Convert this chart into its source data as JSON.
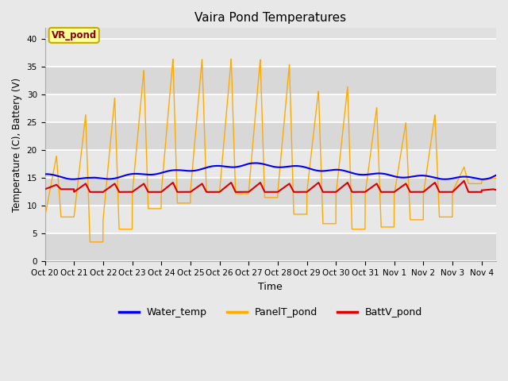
{
  "title": "Vaira Pond Temperatures",
  "xlabel": "Time",
  "ylabel": "Temperature (C), Battery (V)",
  "ylim": [
    0,
    42
  ],
  "yticks": [
    0,
    5,
    10,
    15,
    20,
    25,
    30,
    35,
    40
  ],
  "xtick_labels": [
    "Oct 20",
    "Oct 21",
    "Oct 22",
    "Oct 23",
    "Oct 24",
    "Oct 25",
    "Oct 26",
    "Oct 27",
    "Oct 28",
    "Oct 29",
    "Oct 30",
    "Oct 31",
    "Nov 1",
    "Nov 2",
    "Nov 3",
    "Nov 4"
  ],
  "water_color": "#0000ee",
  "panel_color": "#ffaa00",
  "batt_color": "#dd0000",
  "fig_color": "#e8e8e8",
  "plot_bg_color": "#e0e0e0",
  "annotation_text": "VR_pond",
  "legend_labels": [
    "Water_temp",
    "PanelT_pond",
    "BattV_pond"
  ],
  "panel_day_peak": [
    19.0,
    26.5,
    29.5,
    34.5,
    36.5,
    36.5,
    36.5,
    36.5,
    35.5,
    30.8,
    31.5,
    27.8,
    25.0,
    26.5,
    17.0,
    15.0
  ],
  "panel_night_min": [
    8.0,
    3.5,
    5.8,
    9.5,
    10.5,
    12.5,
    12.2,
    11.5,
    8.5,
    6.8,
    5.8,
    6.2,
    7.5,
    8.0,
    14.0,
    15.0
  ],
  "panel_start": [
    8.0,
    8.0,
    7.5,
    12.0,
    12.5,
    12.5,
    12.5,
    12.5,
    12.5,
    12.5,
    12.0,
    12.0,
    12.0,
    12.0,
    12.5,
    14.5
  ],
  "water_vals": [
    15.5,
    15.3,
    15.0,
    14.8,
    15.0,
    15.2,
    15.5,
    15.8,
    16.0,
    16.2,
    16.5,
    16.8,
    17.0,
    17.2,
    17.5,
    17.4,
    17.2,
    17.0,
    16.8,
    16.5,
    16.3,
    16.0,
    15.8,
    15.6,
    15.4,
    15.3,
    15.2,
    15.1,
    15.0,
    15.0,
    15.0,
    15.2,
    15.5
  ],
  "water_x": [
    0,
    0.5,
    1,
    1.5,
    2,
    2.5,
    3,
    3.5,
    4,
    4.5,
    5,
    5.5,
    6,
    6.5,
    7,
    7.5,
    8,
    8.5,
    9,
    9.5,
    10,
    10.5,
    11,
    11.5,
    12,
    12.5,
    13,
    13.5,
    14,
    14.5,
    15,
    15.3,
    15.5
  ],
  "batt_base": [
    13.0,
    12.5,
    12.5,
    12.5,
    12.5,
    12.5,
    12.5,
    12.5,
    12.5,
    12.5,
    12.5,
    12.5,
    12.5,
    12.5,
    12.5,
    12.8
  ],
  "batt_peak": [
    13.8,
    14.0,
    14.0,
    14.0,
    14.2,
    14.0,
    14.2,
    14.2,
    14.0,
    14.2,
    14.2,
    14.0,
    14.0,
    14.2,
    14.5,
    13.0
  ]
}
